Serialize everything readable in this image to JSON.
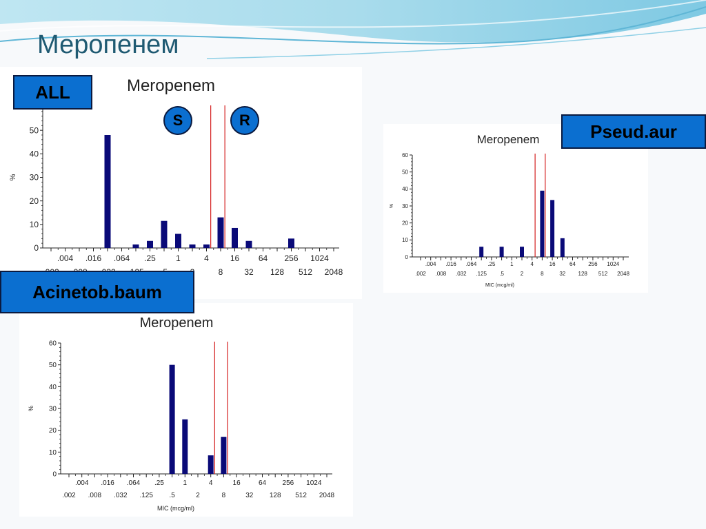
{
  "slide": {
    "title": "Меропенем"
  },
  "labels": {
    "all": "ALL",
    "pseud": "Pseud.aur",
    "acinet": "Acinetob.baum",
    "s": "S",
    "r": "R"
  },
  "colors": {
    "bar": "#0a0a78",
    "breakpoint": "#d42020",
    "label_bg": "#0b6fd0"
  },
  "chart_data": [
    {
      "type": "bar",
      "title": "Meropenem",
      "xlabel": "",
      "ylabel": "%",
      "ylim": [
        0,
        60
      ],
      "yticks": [
        0,
        10,
        20,
        30,
        40,
        50,
        60
      ],
      "ticks_top": [
        ".004",
        ".016",
        ".064",
        ".25",
        "1",
        "4",
        "16",
        "64",
        "256",
        "1024"
      ],
      "ticks_bottom": [
        ".002",
        ".008",
        ".032",
        ".125",
        ".5",
        "2",
        "8",
        "32",
        "128",
        "512",
        "2048"
      ],
      "breakpoints": [
        "4",
        "8"
      ],
      "bars": [
        {
          "x": ".032",
          "value": 48
        },
        {
          "x": ".125",
          "value": 1.5
        },
        {
          "x": ".25",
          "value": 3
        },
        {
          "x": ".5",
          "value": 11.5
        },
        {
          "x": "1",
          "value": 6
        },
        {
          "x": "2",
          "value": 1.5
        },
        {
          "x": "4",
          "value": 1.5
        },
        {
          "x": "8",
          "value": 13
        },
        {
          "x": "16",
          "value": 8.5
        },
        {
          "x": "32",
          "value": 3
        },
        {
          "x": "256",
          "value": 4
        }
      ]
    },
    {
      "type": "bar",
      "title": "Meropenem",
      "xlabel": "MIC (mcg/ml)",
      "ylabel": "%",
      "ylim": [
        0,
        60
      ],
      "yticks": [
        0,
        10,
        20,
        30,
        40,
        50,
        60
      ],
      "ticks_top": [
        ".004",
        ".016",
        ".064",
        ".25",
        "1",
        "4",
        "16",
        "64",
        "256",
        "1024"
      ],
      "ticks_bottom": [
        ".002",
        ".008",
        ".032",
        ".125",
        ".5",
        "2",
        "8",
        "32",
        "128",
        "512",
        "2048"
      ],
      "breakpoints": [
        "4",
        "8"
      ],
      "bars": [
        {
          "x": ".125",
          "value": 6
        },
        {
          "x": ".5",
          "value": 6
        },
        {
          "x": "2",
          "value": 6
        },
        {
          "x": "8",
          "value": 39
        },
        {
          "x": "16",
          "value": 33.5
        },
        {
          "x": "32",
          "value": 11
        }
      ]
    },
    {
      "type": "bar",
      "title": "Meropenem",
      "xlabel": "MIC (mcg/ml)",
      "ylabel": "%",
      "ylim": [
        0,
        60
      ],
      "yticks": [
        0,
        10,
        20,
        30,
        40,
        50,
        60
      ],
      "ticks_top": [
        ".004",
        ".016",
        ".064",
        ".25",
        "1",
        "4",
        "16",
        "64",
        "256",
        "1024"
      ],
      "ticks_bottom": [
        ".002",
        ".008",
        ".032",
        ".125",
        ".5",
        "2",
        "8",
        "32",
        "128",
        "512",
        "2048"
      ],
      "breakpoints": [
        "4",
        "8"
      ],
      "bars": [
        {
          "x": ".5",
          "value": 50
        },
        {
          "x": "1",
          "value": 25
        },
        {
          "x": "4",
          "value": 8.5
        },
        {
          "x": "8",
          "value": 17
        }
      ]
    }
  ]
}
